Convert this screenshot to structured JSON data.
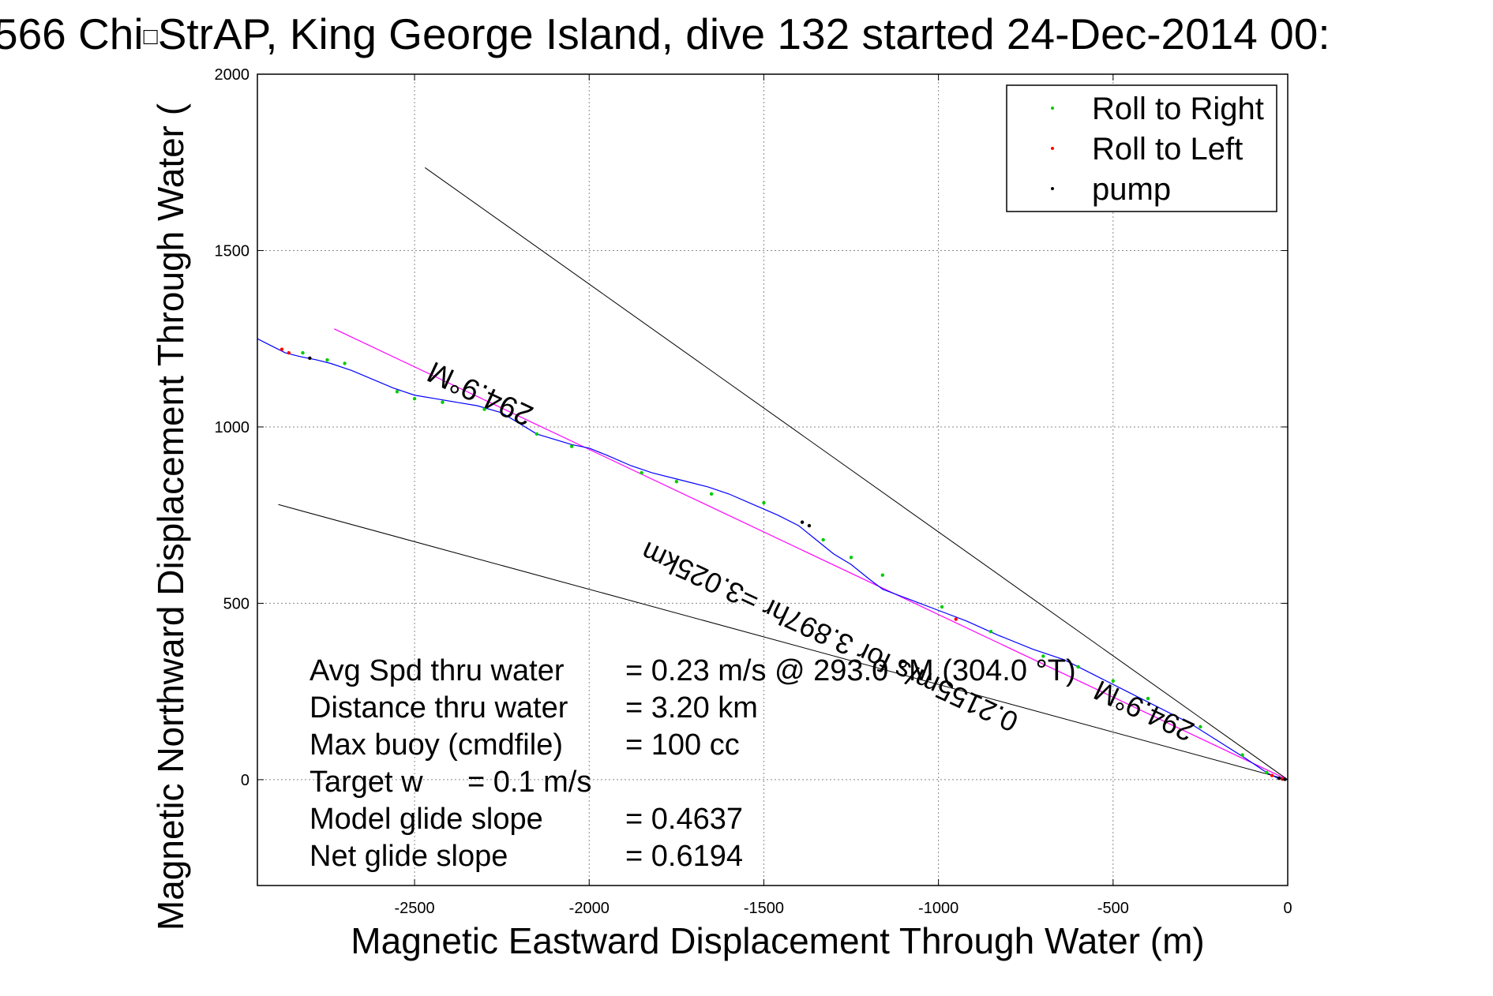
{
  "chart_data": {
    "type": "line",
    "title": "566 Chi",
    "title_obscured": "□",
    "title_rest": "StrAP, King George Island, dive 132 started 24-Dec-2014 00:",
    "xlabel": "Magnetic Eastward Displacement Through Water (m)",
    "ylabel": "Magnetic Northward Displacement Through Water (",
    "xlim": [
      -2950,
      0
    ],
    "ylim": [
      -300,
      2000
    ],
    "xticks": [
      -2500,
      -2000,
      -1500,
      -1000,
      -500,
      0
    ],
    "yticks": [
      0,
      500,
      1000,
      1500,
      2000
    ],
    "grid": true,
    "legend_position": "top-right",
    "legend": [
      {
        "label": "Roll to Right",
        "color": "#00cc00"
      },
      {
        "label": "Roll to Left",
        "color": "#ff0000"
      },
      {
        "label": "pump",
        "color": "#000000"
      }
    ],
    "track": {
      "color": "#0000ff",
      "x": [
        0,
        -30,
        -60,
        -120,
        -200,
        -280,
        -380,
        -480,
        -560,
        -640,
        -730,
        -830,
        -920,
        -1000,
        -1080,
        -1160,
        -1200,
        -1250,
        -1300,
        -1350,
        -1400,
        -1460,
        -1530,
        -1600,
        -1660,
        -1740,
        -1820,
        -1880,
        -1950,
        -2000,
        -2050,
        -2150,
        -2250,
        -2320,
        -2380,
        -2440,
        -2500,
        -2560,
        -2680,
        -2740,
        -2780,
        -2830,
        -2870,
        -2910,
        -2950
      ],
      "y": [
        0,
        5,
        20,
        60,
        110,
        160,
        210,
        260,
        300,
        340,
        370,
        410,
        450,
        480,
        510,
        540,
        570,
        610,
        640,
        680,
        720,
        750,
        780,
        810,
        830,
        850,
        870,
        890,
        920,
        940,
        950,
        980,
        1040,
        1060,
        1070,
        1080,
        1090,
        1110,
        1160,
        1180,
        1190,
        1200,
        1210,
        1230,
        1250
      ]
    },
    "roll_right": {
      "x": [
        -60,
        -130,
        -250,
        -400,
        -500,
        -600,
        -700,
        -850,
        -990,
        -1160,
        -1250,
        -1330,
        -1500,
        -1650,
        -1750,
        -1850,
        -2050,
        -2150,
        -2300,
        -2420,
        -2500,
        -2550,
        -2700,
        -2750,
        -2820
      ],
      "y": [
        20,
        70,
        150,
        230,
        280,
        320,
        350,
        420,
        490,
        580,
        630,
        680,
        785,
        810,
        845,
        870,
        945,
        980,
        1050,
        1070,
        1080,
        1100,
        1180,
        1190,
        1210
      ]
    },
    "roll_left": {
      "x": [
        -15,
        -45,
        -950,
        -2860,
        -2880
      ],
      "y": [
        2,
        12,
        455,
        1210,
        1220
      ]
    },
    "pump": {
      "x": [
        -8,
        -25,
        -1390,
        -1370,
        -2800
      ],
      "y": [
        1,
        4,
        730,
        720,
        1195
      ]
    },
    "heading_line": {
      "color": "#ff00ff",
      "x": [
        0,
        -2730
      ],
      "y": [
        0,
        1278
      ]
    },
    "bound_lines": [
      {
        "x": [
          0,
          -2470
        ],
        "y": [
          0,
          1735
        ]
      },
      {
        "x": [
          0,
          -2890
        ],
        "y": [
          0,
          780
        ]
      }
    ],
    "annotations": [
      {
        "text": "294.9°M",
        "x": -2300,
        "y": 1120,
        "rotate": 205
      },
      {
        "text": "0.2155m/s for 3.897hr =3.025km",
        "x": -1300,
        "y": 430,
        "rotate": 205
      },
      {
        "text": "294.9°M",
        "x": -400,
        "y": 220,
        "rotate": 205
      }
    ],
    "stats": [
      {
        "label": "Avg Spd thru water",
        "value": "=  0.23 m/s @ 293.0 °M (304.0 °T)"
      },
      {
        "label": "Distance thru water",
        "value": "=  3.20 km"
      },
      {
        "label": "Max buoy (cmdfile)",
        "value": "= 100 cc"
      },
      {
        "label": "Target w",
        "value": "= 0.1 m/s"
      },
      {
        "label": "Model glide slope",
        "value": "= 0.4637"
      },
      {
        "label": "Net glide slope",
        "value": "= 0.6194"
      }
    ]
  }
}
